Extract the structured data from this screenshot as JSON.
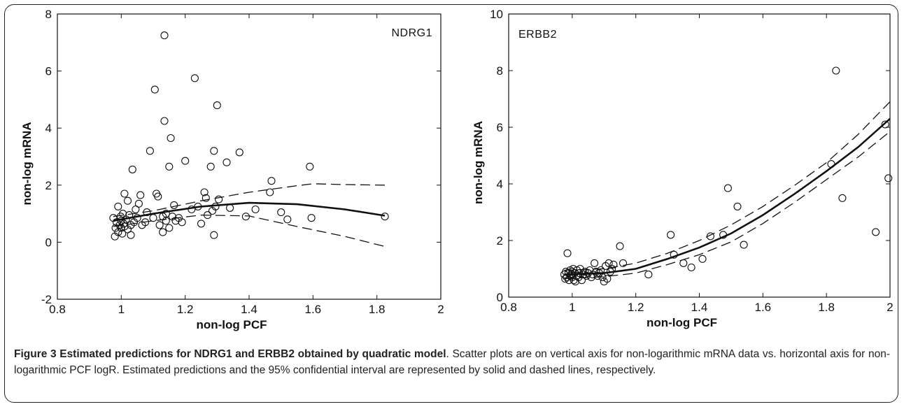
{
  "caption": {
    "title": "Figure 3 Estimated predictions for NDRG1 and ERBB2 obtained by quadratic model",
    "text": ". Scatter plots are on vertical axis for non-logarithmic mRNA data vs. horizontal axis for non-logarithmic PCF logR. Estimated predictions and the 95% confidential interval are represented by solid and dashed lines, respectively."
  },
  "chart_data": [
    {
      "type": "scatter",
      "title": "NDRG1",
      "xlabel": "non-log PCF",
      "ylabel": "non-log mRNA",
      "xlim": [
        0.8,
        2
      ],
      "ylim": [
        -2,
        8
      ],
      "xticks": [
        0.8,
        1,
        1.2,
        1.4,
        1.6,
        1.8,
        2
      ],
      "xtick_labels": [
        "0.8",
        "1",
        "1.2",
        "1.4",
        "1.6",
        "1.8",
        "2"
      ],
      "yticks": [
        -2,
        0,
        2,
        4,
        6,
        8
      ],
      "ytick_labels": [
        "-2",
        "0",
        "2",
        "4",
        "6",
        "8"
      ],
      "grid": false,
      "points": [
        [
          0.975,
          0.85
        ],
        [
          0.98,
          0.2
        ],
        [
          0.982,
          0.5
        ],
        [
          0.985,
          0.7
        ],
        [
          0.99,
          0.35
        ],
        [
          0.99,
          1.25
        ],
        [
          0.995,
          0.6
        ],
        [
          0.998,
          0.9
        ],
        [
          1.0,
          0.75
        ],
        [
          1.0,
          0.5
        ],
        [
          1.003,
          0.3
        ],
        [
          1.005,
          1.0
        ],
        [
          1.008,
          0.65
        ],
        [
          1.01,
          0.55
        ],
        [
          1.01,
          1.7
        ],
        [
          1.015,
          0.8
        ],
        [
          1.02,
          0.45
        ],
        [
          1.02,
          1.45
        ],
        [
          1.025,
          0.95
        ],
        [
          1.03,
          0.6
        ],
        [
          1.03,
          0.25
        ],
        [
          1.035,
          2.55
        ],
        [
          1.04,
          0.7
        ],
        [
          1.045,
          1.15
        ],
        [
          1.05,
          0.85
        ],
        [
          1.055,
          1.35
        ],
        [
          1.06,
          1.65
        ],
        [
          1.065,
          0.6
        ],
        [
          1.075,
          0.7
        ],
        [
          1.08,
          1.05
        ],
        [
          1.09,
          3.2
        ],
        [
          1.1,
          0.85
        ],
        [
          1.105,
          5.35
        ],
        [
          1.11,
          1.7
        ],
        [
          1.115,
          1.6
        ],
        [
          1.12,
          0.6
        ],
        [
          1.13,
          0.35
        ],
        [
          1.13,
          0.9
        ],
        [
          1.135,
          7.25
        ],
        [
          1.135,
          4.25
        ],
        [
          1.14,
          1.0
        ],
        [
          1.14,
          0.75
        ],
        [
          1.15,
          2.65
        ],
        [
          1.15,
          0.5
        ],
        [
          1.155,
          3.65
        ],
        [
          1.16,
          0.9
        ],
        [
          1.165,
          1.3
        ],
        [
          1.17,
          0.75
        ],
        [
          1.18,
          0.85
        ],
        [
          1.19,
          0.7
        ],
        [
          1.2,
          2.85
        ],
        [
          1.22,
          1.15
        ],
        [
          1.23,
          5.75
        ],
        [
          1.24,
          1.25
        ],
        [
          1.25,
          0.65
        ],
        [
          1.26,
          1.75
        ],
        [
          1.265,
          1.55
        ],
        [
          1.27,
          0.95
        ],
        [
          1.28,
          2.65
        ],
        [
          1.285,
          1.1
        ],
        [
          1.29,
          3.2
        ],
        [
          1.29,
          0.25
        ],
        [
          1.295,
          1.25
        ],
        [
          1.3,
          4.8
        ],
        [
          1.305,
          1.5
        ],
        [
          1.33,
          2.8
        ],
        [
          1.34,
          1.2
        ],
        [
          1.37,
          3.15
        ],
        [
          1.39,
          0.9
        ],
        [
          1.42,
          1.15
        ],
        [
          1.465,
          1.75
        ],
        [
          1.47,
          2.15
        ],
        [
          1.5,
          1.05
        ],
        [
          1.52,
          0.8
        ],
        [
          1.59,
          2.65
        ],
        [
          1.595,
          0.85
        ],
        [
          1.825,
          0.9
        ]
      ],
      "fit": {
        "x": [
          0.975,
          1.1,
          1.25,
          1.4,
          1.55,
          1.7,
          1.825
        ],
        "y": [
          0.75,
          1.0,
          1.25,
          1.38,
          1.33,
          1.15,
          0.93
        ]
      },
      "ci_upper": {
        "x": [
          0.975,
          1.1,
          1.25,
          1.4,
          1.55,
          1.6,
          1.7,
          1.825
        ],
        "y": [
          0.9,
          1.1,
          1.45,
          1.75,
          1.98,
          2.05,
          2.02,
          2.0
        ]
      },
      "ci_lower": {
        "x": [
          0.975,
          1.1,
          1.25,
          1.4,
          1.55,
          1.7,
          1.825
        ],
        "y": [
          0.55,
          0.75,
          0.95,
          0.92,
          0.55,
          0.2,
          -0.15
        ]
      }
    },
    {
      "type": "scatter",
      "title": "ERBB2",
      "xlabel": "non-log PCF",
      "ylabel": "non-log mRNA",
      "xlim": [
        0.8,
        2
      ],
      "ylim": [
        0,
        10
      ],
      "xticks": [
        0.8,
        1,
        1.2,
        1.4,
        1.6,
        1.8,
        2
      ],
      "xtick_labels": [
        "0.8",
        "1",
        "1.2",
        "1.4",
        "1.6",
        "1.8",
        "2"
      ],
      "yticks": [
        0,
        2,
        4,
        6,
        8,
        10
      ],
      "ytick_labels": [
        "0",
        "2",
        "4",
        "6",
        "8",
        "10"
      ],
      "grid": false,
      "points": [
        [
          0.975,
          0.8
        ],
        [
          0.978,
          0.65
        ],
        [
          0.98,
          0.9
        ],
        [
          0.983,
          0.7
        ],
        [
          0.985,
          1.55
        ],
        [
          0.988,
          0.85
        ],
        [
          0.99,
          0.6
        ],
        [
          0.993,
          0.95
        ],
        [
          0.995,
          0.75
        ],
        [
          0.998,
          0.8
        ],
        [
          1.0,
          0.7
        ],
        [
          1.0,
          0.9
        ],
        [
          1.003,
          1.0
        ],
        [
          1.005,
          0.6
        ],
        [
          1.008,
          0.85
        ],
        [
          1.01,
          0.55
        ],
        [
          1.013,
          0.75
        ],
        [
          1.015,
          0.95
        ],
        [
          1.02,
          0.7
        ],
        [
          1.022,
          0.85
        ],
        [
          1.025,
          1.0
        ],
        [
          1.03,
          0.6
        ],
        [
          1.035,
          0.8
        ],
        [
          1.04,
          0.9
        ],
        [
          1.045,
          0.75
        ],
        [
          1.05,
          0.85
        ],
        [
          1.055,
          0.95
        ],
        [
          1.06,
          0.7
        ],
        [
          1.065,
          0.8
        ],
        [
          1.07,
          1.2
        ],
        [
          1.075,
          0.9
        ],
        [
          1.08,
          0.75
        ],
        [
          1.085,
          0.85
        ],
        [
          1.09,
          0.95
        ],
        [
          1.095,
          0.7
        ],
        [
          1.1,
          0.55
        ],
        [
          1.105,
          1.1
        ],
        [
          1.11,
          0.65
        ],
        [
          1.115,
          1.2
        ],
        [
          1.12,
          0.9
        ],
        [
          1.125,
          1.0
        ],
        [
          1.13,
          1.15
        ],
        [
          1.15,
          1.8
        ],
        [
          1.16,
          1.2
        ],
        [
          1.24,
          0.8
        ],
        [
          1.31,
          2.2
        ],
        [
          1.32,
          1.5
        ],
        [
          1.35,
          1.2
        ],
        [
          1.375,
          1.05
        ],
        [
          1.41,
          1.35
        ],
        [
          1.435,
          2.15
        ],
        [
          1.475,
          2.2
        ],
        [
          1.49,
          3.85
        ],
        [
          1.52,
          3.2
        ],
        [
          1.54,
          1.85
        ],
        [
          1.815,
          4.7
        ],
        [
          1.83,
          8.0
        ],
        [
          1.85,
          3.5
        ],
        [
          1.955,
          2.3
        ],
        [
          1.985,
          6.1
        ],
        [
          1.995,
          4.2
        ]
      ],
      "fit": {
        "x": [
          0.975,
          1.1,
          1.2,
          1.3,
          1.4,
          1.5,
          1.6,
          1.7,
          1.8,
          1.9,
          2.0
        ],
        "y": [
          0.8,
          0.85,
          1.0,
          1.35,
          1.75,
          2.25,
          2.9,
          3.65,
          4.45,
          5.3,
          6.3
        ]
      },
      "ci_upper": {
        "x": [
          0.975,
          1.1,
          1.2,
          1.3,
          1.4,
          1.5,
          1.6,
          1.7,
          1.8,
          1.9,
          2.0
        ],
        "y": [
          0.95,
          1.0,
          1.2,
          1.55,
          2.0,
          2.55,
          3.2,
          3.95,
          4.75,
          5.75,
          6.9
        ]
      },
      "ci_lower": {
        "x": [
          0.975,
          1.1,
          1.2,
          1.3,
          1.4,
          1.5,
          1.6,
          1.7,
          1.8,
          1.9,
          2.0
        ],
        "y": [
          0.65,
          0.72,
          0.85,
          1.15,
          1.5,
          1.95,
          2.6,
          3.35,
          4.15,
          4.95,
          5.85
        ]
      }
    }
  ]
}
